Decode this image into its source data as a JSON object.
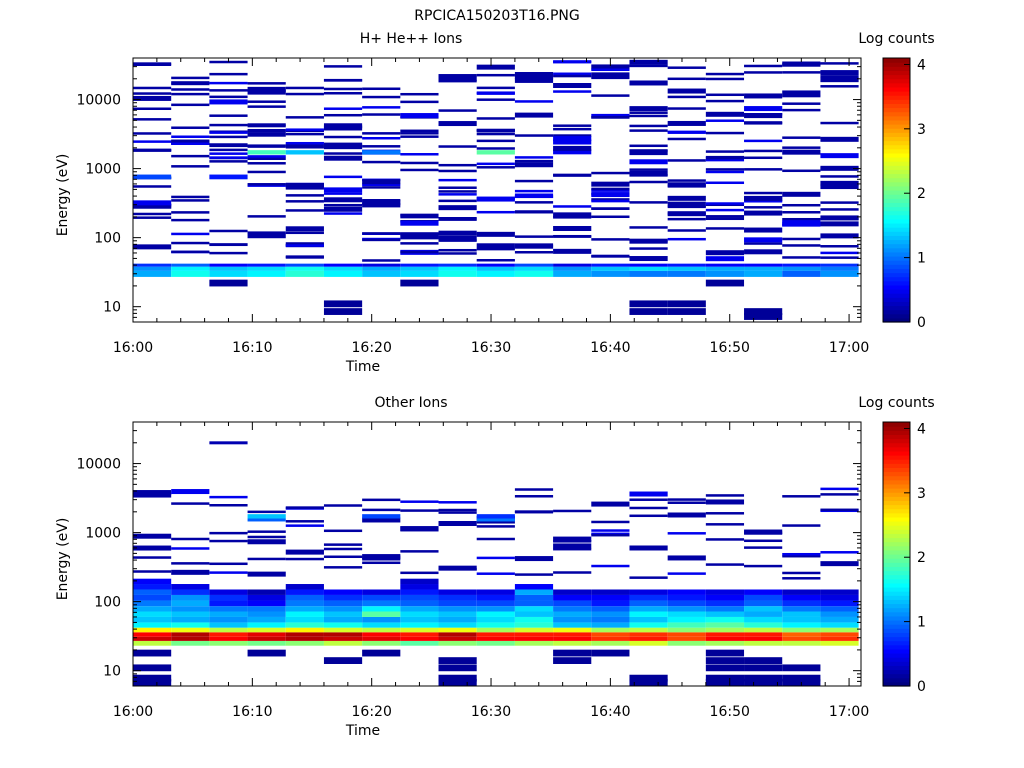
{
  "page_title": "RPCICA150203T16.PNG",
  "colormap": [
    "#00007f",
    "#0000ff",
    "#007fff",
    "#00ffff",
    "#7fff7f",
    "#ffff00",
    "#ff7f00",
    "#ff0000",
    "#7f0000"
  ],
  "chart_data": [
    {
      "type": "heatmap",
      "title": "H+ He++ Ions",
      "xlabel": "Time",
      "ylabel": "Energy (eV)",
      "colorbar_label": "Log counts",
      "colorbar_ticks": [
        "0",
        "1",
        "2",
        "3",
        "4"
      ],
      "clim": [
        0,
        4.1
      ],
      "x_ticks": [
        "16:00",
        "16:10",
        "16:20",
        "16:30",
        "16:40",
        "16:50",
        "17:00"
      ],
      "xlim_minutes": [
        0,
        61
      ],
      "y_scale": "log",
      "ylim": [
        6,
        40000
      ],
      "y_ticks": [
        "10",
        "100",
        "1000",
        "10000"
      ],
      "n_time_bins": 19,
      "bands": [
        {
          "e": [
            27,
            33
          ],
          "values": [
            1.2,
            1.6,
            1.4,
            1.5,
            1.7,
            1.5,
            1.3,
            1.4,
            1.6,
            1.5,
            1.6,
            1.2,
            1.1,
            1.0,
            1.0,
            1.1,
            1.2,
            0.9,
            1.1
          ]
        },
        {
          "e": [
            33,
            38
          ],
          "values": [
            1.1,
            1.5,
            1.3,
            1.4,
            1.6,
            1.4,
            1.2,
            1.3,
            1.5,
            1.3,
            1.4,
            1.1,
            1.3,
            1.4,
            1.3,
            1.2,
            1.2,
            1.1,
            1.0
          ]
        },
        {
          "e": [
            38,
            42
          ],
          "values": [
            0.7,
            0.9,
            0.5,
            0.6,
            0.8,
            0.5,
            0.4,
            0.6,
            0.7,
            0.5,
            0.8,
            0.4,
            0.6,
            0.5,
            0.6,
            0.5,
            0.5,
            0.6,
            0.7
          ]
        },
        {
          "e": [
            1600,
            1850
          ],
          "values": [
            null,
            null,
            null,
            1.8,
            1.3,
            null,
            1.0,
            null,
            null,
            1.9,
            null,
            null,
            null,
            null,
            null,
            null,
            null,
            null,
            null
          ]
        },
        {
          "e": [
            700,
            820
          ],
          "values": [
            0.8,
            null,
            0.6,
            null,
            null,
            null,
            null,
            null,
            null,
            null,
            null,
            null,
            null,
            null,
            null,
            null,
            null,
            null,
            null
          ]
        }
      ],
      "sparse": [
        {
          "e": 22,
          "bins": [
            2,
            7,
            15
          ]
        },
        {
          "e": 11,
          "bins": [
            5,
            13,
            14
          ]
        },
        {
          "e": 8.5,
          "bins": [
            5,
            13,
            14,
            16
          ]
        },
        {
          "e": 7.2,
          "bins": [
            16
          ]
        }
      ]
    },
    {
      "type": "heatmap",
      "title": "Other Ions",
      "xlabel": "Time",
      "ylabel": "Energy (eV)",
      "colorbar_label": "Log counts",
      "colorbar_ticks": [
        "0",
        "1",
        "2",
        "3",
        "4"
      ],
      "clim": [
        0,
        4.1
      ],
      "x_ticks": [
        "16:00",
        "16:10",
        "16:20",
        "16:30",
        "16:40",
        "16:50",
        "17:00"
      ],
      "xlim_minutes": [
        0,
        61
      ],
      "y_scale": "log",
      "ylim": [
        6,
        40000
      ],
      "y_ticks": [
        "10",
        "100",
        "1000",
        "10000"
      ],
      "n_time_bins": 19,
      "bands": [
        {
          "e": [
            23,
            27
          ],
          "values": [
            2.3,
            2.0,
            2.1,
            2.0,
            2.1,
            2.3,
            2.1,
            1.9,
            2.1,
            2.0,
            2.2,
            2.3,
            2.2,
            2.4,
            2.1,
            2.2,
            2.3,
            2.3,
            2.4
          ]
        },
        {
          "e": [
            27,
            31
          ],
          "values": [
            3.8,
            3.9,
            3.6,
            3.8,
            3.9,
            3.8,
            3.7,
            3.6,
            3.8,
            3.6,
            3.6,
            3.6,
            3.4,
            3.5,
            3.3,
            3.6,
            3.6,
            3.3,
            3.4
          ]
        },
        {
          "e": [
            31,
            36
          ],
          "values": [
            3.6,
            3.9,
            3.5,
            3.7,
            3.9,
            3.9,
            3.6,
            3.5,
            3.9,
            3.5,
            3.5,
            3.5,
            3.3,
            3.4,
            3.3,
            3.5,
            3.5,
            3.2,
            3.3
          ]
        },
        {
          "e": [
            36,
            42
          ],
          "values": [
            2.6,
            2.5,
            2.3,
            2.4,
            2.6,
            2.4,
            2.3,
            2.4,
            2.5,
            2.2,
            2.4,
            2.5,
            2.2,
            2.3,
            2.1,
            2.2,
            2.3,
            2.1,
            2.2
          ]
        },
        {
          "e": [
            42,
            50
          ],
          "values": [
            1.5,
            1.6,
            1.3,
            1.5,
            1.7,
            1.6,
            1.4,
            1.5,
            1.4,
            1.6,
            1.7,
            1.3,
            1.2,
            1.6,
            1.8,
            1.9,
            1.7,
            1.5,
            1.4
          ]
        },
        {
          "e": [
            50,
            60
          ],
          "values": [
            1.3,
            1.2,
            1.1,
            1.2,
            1.4,
            1.2,
            1.1,
            1.3,
            1.2,
            1.4,
            1.6,
            1.1,
            1.0,
            1.3,
            1.5,
            1.6,
            1.4,
            1.3,
            1.2
          ]
        },
        {
          "e": [
            60,
            72
          ],
          "values": [
            1.4,
            1.3,
            1.2,
            1.1,
            1.5,
            1.3,
            1.9,
            1.4,
            1.3,
            1.5,
            1.3,
            1.2,
            1.1,
            1.5,
            1.4,
            1.3,
            1.2,
            1.3,
            1.1
          ]
        },
        {
          "e": [
            72,
            86
          ],
          "values": [
            1.2,
            1.1,
            1.0,
            1.0,
            1.2,
            1.1,
            1.5,
            1.2,
            1.1,
            1.1,
            1.4,
            1.0,
            0.9,
            1.2,
            1.1,
            1.0,
            1.3,
            1.0,
            0.9
          ]
        },
        {
          "e": [
            86,
            104
          ],
          "values": [
            1.0,
            1.2,
            0.6,
            0.5,
            1.0,
            0.9,
            1.0,
            0.9,
            0.8,
            0.8,
            0.9,
            0.8,
            0.6,
            0.9,
            0.8,
            0.7,
            0.9,
            0.7,
            0.6
          ]
        },
        {
          "e": [
            104,
            125
          ],
          "values": [
            0.8,
            1.1,
            0.7,
            0.4,
            0.9,
            0.7,
            0.8,
            0.8,
            0.7,
            0.6,
            0.9,
            0.5,
            0.5,
            0.7,
            0.6,
            0.5,
            0.8,
            0.5,
            0.4
          ]
        },
        {
          "e": [
            125,
            150
          ],
          "values": [
            0.9,
            0.7,
            0.4,
            0.2,
            0.6,
            0.5,
            0.4,
            0.6,
            0.4,
            0.4,
            1.2,
            0.3,
            0.3,
            0.4,
            0.5,
            0.4,
            0.5,
            0.3,
            0.3
          ]
        },
        {
          "e": [
            150,
            180
          ],
          "values": [
            0.6,
            0.4,
            null,
            null,
            0.3,
            null,
            null,
            0.4,
            null,
            null,
            0.5,
            null,
            null,
            null,
            null,
            null,
            null,
            null,
            null
          ]
        },
        {
          "e": [
            180,
            215
          ],
          "values": [
            0.5,
            null,
            null,
            null,
            null,
            null,
            null,
            0.3,
            null,
            null,
            null,
            null,
            null,
            null,
            null,
            null,
            null,
            null,
            null
          ]
        },
        {
          "e": [
            1600,
            1850
          ],
          "values": [
            null,
            null,
            null,
            1.3,
            null,
            null,
            0.8,
            null,
            null,
            0.7,
            null,
            null,
            null,
            null,
            null,
            null,
            null,
            null,
            null
          ]
        },
        {
          "e": [
            1450,
            1600
          ],
          "values": [
            null,
            null,
            null,
            0.9,
            null,
            null,
            null,
            null,
            null,
            1.0,
            null,
            null,
            null,
            null,
            null,
            null,
            null,
            null,
            null
          ]
        }
      ],
      "sparse": [
        {
          "e": 18,
          "bins": [
            0,
            3,
            6,
            11,
            12,
            15
          ]
        },
        {
          "e": 14,
          "bins": [
            5,
            8,
            11,
            15,
            16
          ]
        },
        {
          "e": 11,
          "bins": [
            0,
            8,
            15,
            16,
            17
          ]
        },
        {
          "e": 7.8,
          "bins": [
            0,
            8,
            13,
            15,
            16,
            17
          ]
        },
        {
          "e": 6.8,
          "bins": [
            0,
            8,
            13,
            15,
            16,
            17
          ]
        }
      ]
    }
  ]
}
